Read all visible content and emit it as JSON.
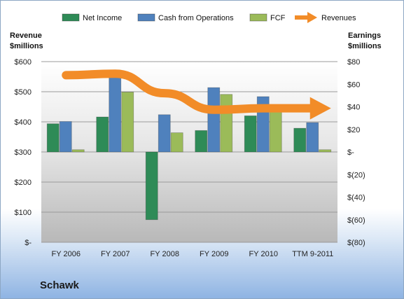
{
  "chart_data": {
    "type": "bar",
    "title": "",
    "company": "Schawk",
    "categories": [
      "FY 2006",
      "FY 2007",
      "FY 2008",
      "FY 2009",
      "FY 2010",
      "TTM 9-2011"
    ],
    "series": [
      {
        "name": "Net Income",
        "axis": "right",
        "color": "#2e8b57",
        "values": [
          25,
          31,
          -60,
          19,
          32,
          21
        ]
      },
      {
        "name": "Cash from Operations",
        "axis": "right",
        "color": "#4f81bd",
        "values": [
          27,
          71,
          33,
          57,
          49,
          26
        ]
      },
      {
        "name": "FCF",
        "axis": "right",
        "color": "#9bbb59",
        "values": [
          2,
          53,
          17,
          51,
          37,
          2
        ]
      },
      {
        "name": "Revenues",
        "type": "line",
        "axis": "left",
        "color": "#f28c28",
        "values": [
          555,
          560,
          495,
          440,
          445,
          445
        ]
      }
    ],
    "left_axis": {
      "label_line1": "Revenue",
      "label_line2": "$millions",
      "ylim": [
        0,
        600
      ],
      "ticks": [
        600,
        500,
        400,
        300,
        200,
        100,
        0
      ],
      "tick_labels": [
        "$600",
        "$500",
        "$400",
        "$300",
        "$200",
        "$100",
        "$-"
      ]
    },
    "right_axis": {
      "label_line1": "Earnings",
      "label_line2": "$millions",
      "ylim": [
        -80,
        80
      ],
      "ticks": [
        80,
        60,
        40,
        20,
        0,
        -20,
        -40,
        -60,
        -80
      ],
      "tick_labels": [
        "$80",
        "$60",
        "$40",
        "$20",
        "$-",
        "$(20)",
        "$(40)",
        "$(60)",
        "$(80)"
      ]
    },
    "grid": true,
    "legend_position": "top"
  }
}
